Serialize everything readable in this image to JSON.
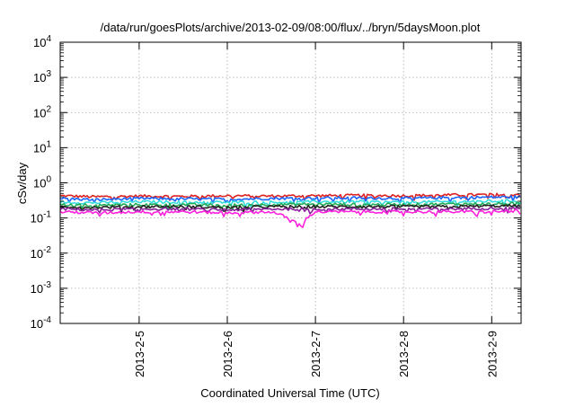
{
  "chart_data": {
    "type": "line",
    "title": "/data/run/goesPlots/archive/2013-02-09/08:00/flux/../bryn/5daysMoon.plot",
    "xlabel": "Coordinated Universal Time (UTC)",
    "ylabel": "cSv/day",
    "yscale": "log",
    "ylim": [
      0.0001,
      10000
    ],
    "xlim": [
      "2013-02-04 02:30",
      "2013-02-09 08:00"
    ],
    "y_ticks": [
      {
        "value": 0.0001,
        "base": "10",
        "exp": "-4"
      },
      {
        "value": 0.001,
        "base": "10",
        "exp": "-3"
      },
      {
        "value": 0.01,
        "base": "10",
        "exp": "-2"
      },
      {
        "value": 0.1,
        "base": "10",
        "exp": "-1"
      },
      {
        "value": 1,
        "base": "10",
        "exp": "0"
      },
      {
        "value": 10,
        "base": "10",
        "exp": "1"
      },
      {
        "value": 100,
        "base": "10",
        "exp": "2"
      },
      {
        "value": 1000,
        "base": "10",
        "exp": "3"
      },
      {
        "value": 10000,
        "base": "10",
        "exp": "4"
      }
    ],
    "x_ticks": [
      {
        "value": "2013-02-05 00:00",
        "label": "2013-2-5"
      },
      {
        "value": "2013-02-06 00:00",
        "label": "2013-2-6"
      },
      {
        "value": "2013-02-07 00:00",
        "label": "2013-2-7"
      },
      {
        "value": "2013-02-08 00:00",
        "label": "2013-2-8"
      },
      {
        "value": "2013-02-09 00:00",
        "label": "2013-2-9"
      }
    ],
    "grid": true,
    "legend": "none",
    "series": [
      {
        "color": "#dd2222",
        "x": [
          "2013-02-04 02:30",
          "2013-02-04 12:00",
          "2013-02-05 00:00",
          "2013-02-05 12:00",
          "2013-02-06 00:00",
          "2013-02-06 12:00",
          "2013-02-07 00:00",
          "2013-02-07 12:00",
          "2013-02-08 00:00",
          "2013-02-08 12:00",
          "2013-02-09 00:00",
          "2013-02-09 08:00"
        ],
        "values": [
          0.43,
          0.4,
          0.42,
          0.41,
          0.43,
          0.42,
          0.43,
          0.44,
          0.43,
          0.45,
          0.46,
          0.47
        ]
      },
      {
        "color": "#1a66ff",
        "x": [
          "2013-02-04 02:30",
          "2013-02-04 12:00",
          "2013-02-05 00:00",
          "2013-02-05 12:00",
          "2013-02-06 00:00",
          "2013-02-06 12:00",
          "2013-02-07 00:00",
          "2013-02-07 12:00",
          "2013-02-08 00:00",
          "2013-02-08 12:00",
          "2013-02-09 00:00",
          "2013-02-09 08:00"
        ],
        "values": [
          0.36,
          0.33,
          0.36,
          0.35,
          0.34,
          0.36,
          0.37,
          0.37,
          0.36,
          0.38,
          0.39,
          0.4
        ]
      },
      {
        "color": "#33dddd",
        "x": [
          "2013-02-04 02:30",
          "2013-02-04 12:00",
          "2013-02-05 00:00",
          "2013-02-05 12:00",
          "2013-02-06 00:00",
          "2013-02-06 12:00",
          "2013-02-07 00:00",
          "2013-02-07 12:00",
          "2013-02-08 00:00",
          "2013-02-08 12:00",
          "2013-02-09 00:00",
          "2013-02-09 08:00"
        ],
        "values": [
          0.28,
          0.27,
          0.29,
          0.28,
          0.28,
          0.28,
          0.29,
          0.29,
          0.28,
          0.29,
          0.3,
          0.31
        ]
      },
      {
        "color": "#22aa55",
        "x": [
          "2013-02-04 02:30",
          "2013-02-04 12:00",
          "2013-02-05 00:00",
          "2013-02-05 12:00",
          "2013-02-06 00:00",
          "2013-02-06 12:00",
          "2013-02-07 00:00",
          "2013-02-07 12:00",
          "2013-02-08 00:00",
          "2013-02-08 12:00",
          "2013-02-09 00:00",
          "2013-02-09 08:00"
        ],
        "values": [
          0.24,
          0.23,
          0.24,
          0.24,
          0.23,
          0.24,
          0.25,
          0.24,
          0.24,
          0.25,
          0.25,
          0.26
        ]
      },
      {
        "color": "#222222",
        "x": [
          "2013-02-04 02:30",
          "2013-02-04 12:00",
          "2013-02-05 00:00",
          "2013-02-05 12:00",
          "2013-02-06 00:00",
          "2013-02-06 12:00",
          "2013-02-07 00:00",
          "2013-02-07 12:00",
          "2013-02-08 00:00",
          "2013-02-08 12:00",
          "2013-02-09 00:00",
          "2013-02-09 08:00"
        ],
        "values": [
          0.21,
          0.2,
          0.21,
          0.21,
          0.2,
          0.21,
          0.21,
          0.21,
          0.21,
          0.21,
          0.22,
          0.22
        ]
      },
      {
        "color": "#882299",
        "x": [
          "2013-02-04 02:30",
          "2013-02-04 12:00",
          "2013-02-05 00:00",
          "2013-02-05 12:00",
          "2013-02-06 00:00",
          "2013-02-06 12:00",
          "2013-02-07 00:00",
          "2013-02-07 12:00",
          "2013-02-08 00:00",
          "2013-02-08 12:00",
          "2013-02-09 00:00",
          "2013-02-09 08:00"
        ],
        "values": [
          0.18,
          0.17,
          0.18,
          0.18,
          0.17,
          0.18,
          0.18,
          0.18,
          0.18,
          0.18,
          0.19,
          0.19
        ]
      },
      {
        "color": "#ff22dd",
        "x": [
          "2013-02-04 02:30",
          "2013-02-04 12:00",
          "2013-02-05 00:00",
          "2013-02-05 12:00",
          "2013-02-06 00:00",
          "2013-02-06 12:00",
          "2013-02-06 20:00",
          "2013-02-07 00:00",
          "2013-02-07 12:00",
          "2013-02-08 00:00",
          "2013-02-08 12:00",
          "2013-02-09 00:00",
          "2013-02-09 08:00"
        ],
        "values": [
          0.15,
          0.14,
          0.15,
          0.15,
          0.14,
          0.15,
          0.06,
          0.15,
          0.15,
          0.15,
          0.15,
          0.15,
          0.16
        ]
      }
    ]
  }
}
